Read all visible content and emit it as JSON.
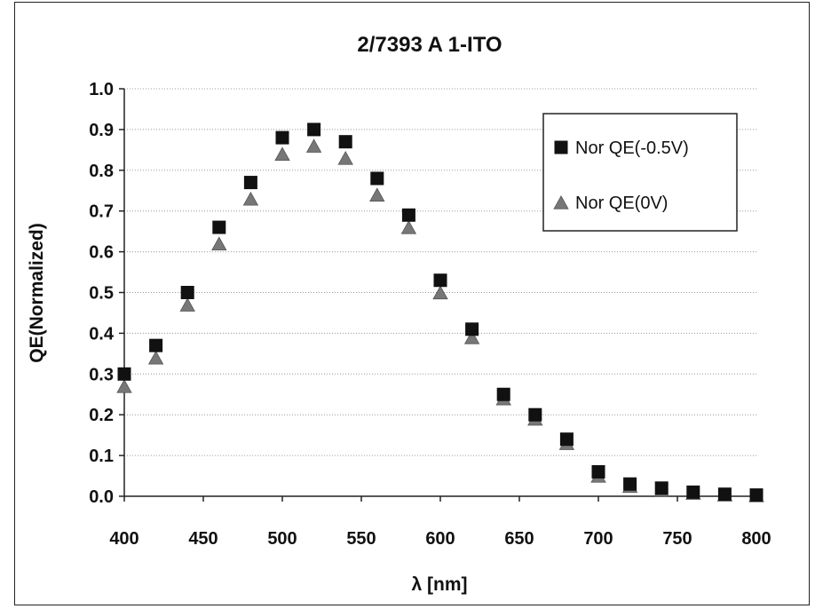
{
  "chart_data": {
    "type": "scatter",
    "title": "2/7393 A 1-ITO",
    "xlabel": "λ [nm]",
    "ylabel": "QE(Normalized)",
    "xlim": [
      400,
      800
    ],
    "ylim": [
      0.0,
      1.0
    ],
    "xticks": [
      "400",
      "450",
      "500",
      "550",
      "600",
      "650",
      "700",
      "750",
      "800"
    ],
    "yticks": [
      "0.0",
      "0.1",
      "0.2",
      "0.3",
      "0.4",
      "0.5",
      "0.6",
      "0.7",
      "0.8",
      "0.9",
      "1.0"
    ],
    "grid": "horizontal dotted",
    "legend_position": "top-right",
    "x": [
      400,
      420,
      440,
      460,
      480,
      500,
      520,
      540,
      560,
      580,
      600,
      620,
      640,
      660,
      680,
      700,
      720,
      740,
      760,
      780,
      800
    ],
    "series": [
      {
        "name": "Nor QE(-0.5V)",
        "marker": "square",
        "color": "#111111",
        "values": [
          0.3,
          0.37,
          0.5,
          0.66,
          0.77,
          0.88,
          0.9,
          0.87,
          0.78,
          0.69,
          0.53,
          0.41,
          0.25,
          0.2,
          0.14,
          0.06,
          0.03,
          0.02,
          0.01,
          0.005,
          0.003
        ]
      },
      {
        "name": "Nor QE(0V)",
        "marker": "triangle",
        "color": "#777777",
        "values": [
          0.27,
          0.34,
          0.47,
          0.62,
          0.73,
          0.84,
          0.86,
          0.83,
          0.74,
          0.66,
          0.5,
          0.39,
          0.24,
          0.19,
          0.13,
          0.05,
          0.025,
          0.015,
          0.008,
          0.004,
          0.002
        ]
      }
    ]
  }
}
